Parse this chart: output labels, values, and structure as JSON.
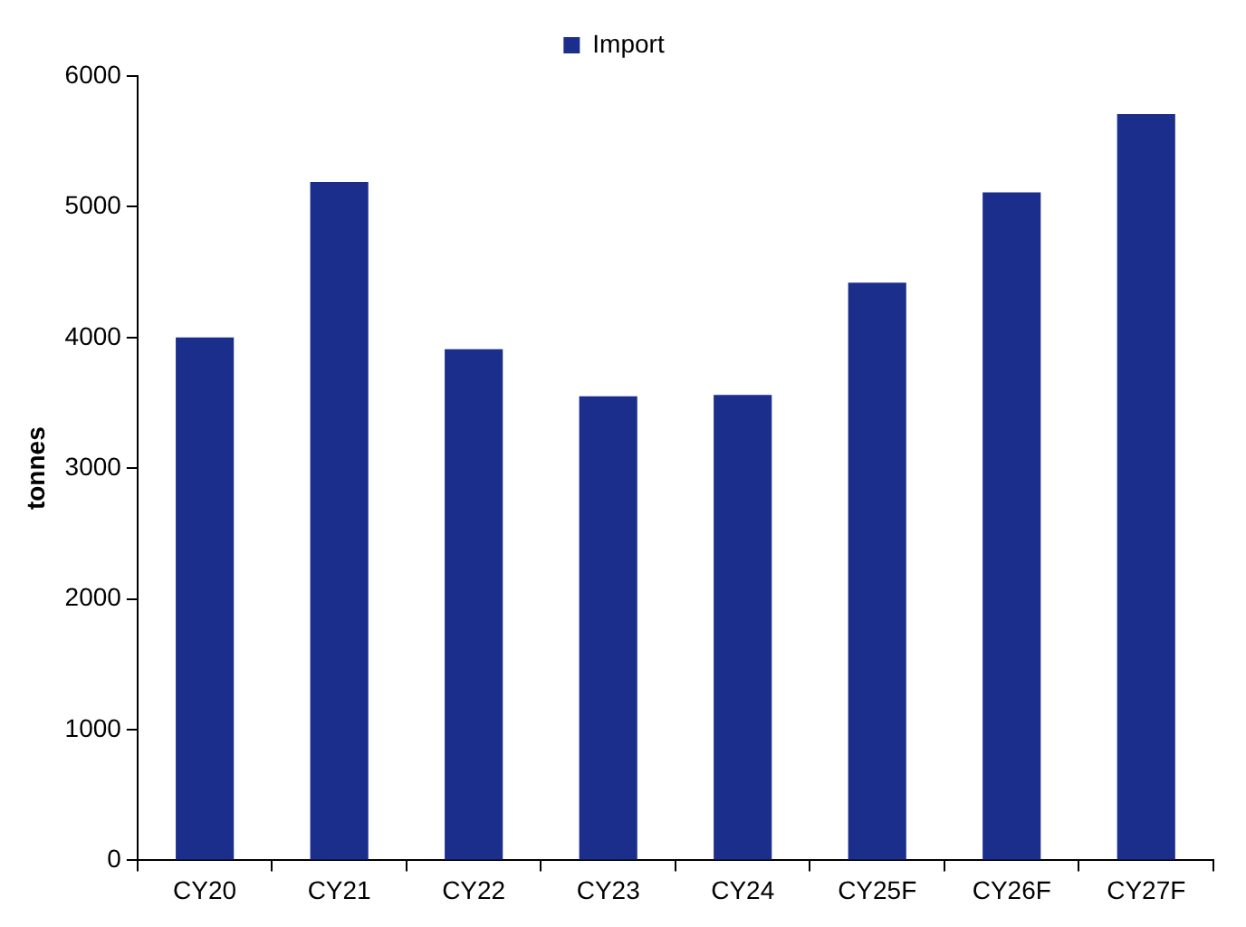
{
  "chart_data": {
    "type": "bar",
    "ylabel": "tonnes",
    "categories": [
      "CY20",
      "CY21",
      "CY22",
      "CY23",
      "CY24",
      "CY25F",
      "CY26F",
      "CY27F"
    ],
    "series": [
      {
        "name": "Import",
        "color": "#1c2e8c",
        "values": [
          4000,
          5190,
          3910,
          3550,
          3560,
          4420,
          5110,
          5710
        ]
      }
    ],
    "ylim": [
      0,
      6000
    ],
    "yticks": [
      0,
      1000,
      2000,
      3000,
      4000,
      5000,
      6000
    ],
    "grid": false,
    "legend": "top"
  }
}
